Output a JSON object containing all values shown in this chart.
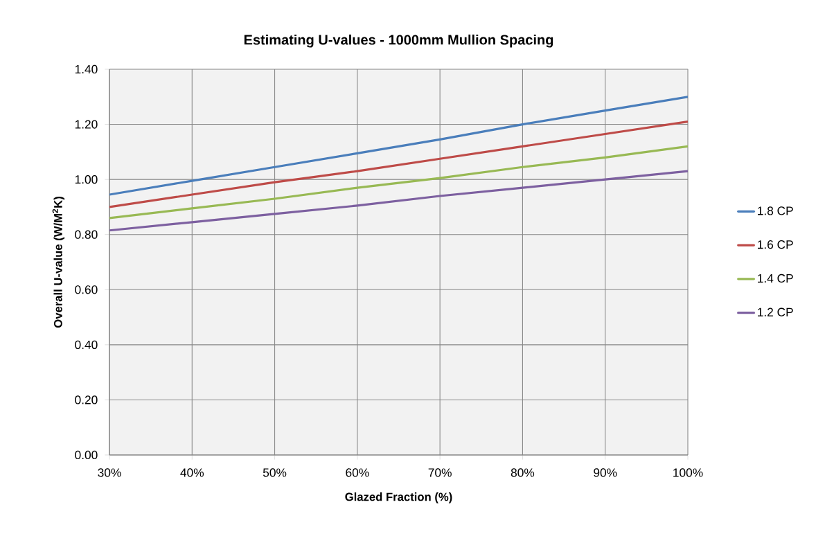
{
  "chart_data": {
    "type": "line",
    "title": "Estimating U-values - 1000mm Mullion Spacing",
    "xlabel": "Glazed Fraction (%)",
    "ylabel": "Overall U-value (W/M$^{2}$K)",
    "x": [
      30,
      40,
      50,
      60,
      70,
      80,
      90,
      100
    ],
    "series": [
      {
        "name": "1.8 CP",
        "color": "#4a7ebb",
        "values": [
          0.945,
          0.995,
          1.045,
          1.095,
          1.145,
          1.2,
          1.25,
          1.3
        ]
      },
      {
        "name": "1.6 CP",
        "color": "#be4b48",
        "values": [
          0.9,
          0.945,
          0.99,
          1.03,
          1.075,
          1.12,
          1.165,
          1.21
        ]
      },
      {
        "name": "1.4 CP",
        "color": "#98b954",
        "values": [
          0.86,
          0.895,
          0.93,
          0.97,
          1.005,
          1.045,
          1.08,
          1.12
        ]
      },
      {
        "name": "1.2 CP",
        "color": "#7d60a0",
        "values": [
          0.815,
          0.845,
          0.875,
          0.905,
          0.94,
          0.97,
          1.0,
          1.03
        ]
      }
    ],
    "xlim": [
      30,
      100
    ],
    "xticks": [
      {
        "value": 30,
        "label": "30%"
      },
      {
        "value": 40,
        "label": "40%"
      },
      {
        "value": 50,
        "label": "50%"
      },
      {
        "value": 60,
        "label": "60%"
      },
      {
        "value": 70,
        "label": "70%"
      },
      {
        "value": 80,
        "label": "80%"
      },
      {
        "value": 90,
        "label": "90%"
      },
      {
        "value": 100,
        "label": "100%"
      }
    ],
    "ylim": [
      0,
      1.4
    ],
    "yticks": [
      {
        "value": 0,
        "label": "0.00"
      },
      {
        "value": 0.2,
        "label": "0.20"
      },
      {
        "value": 0.4,
        "label": "0.40"
      },
      {
        "value": 0.6,
        "label": "0.60"
      },
      {
        "value": 0.8,
        "label": "0.80"
      },
      {
        "value": 1.0,
        "label": "1.00"
      },
      {
        "value": 1.2,
        "label": "1.20"
      },
      {
        "value": 1.4,
        "label": "1.40"
      }
    ],
    "grid": true,
    "legend": "right",
    "marker": "none",
    "line_style": "solid"
  }
}
